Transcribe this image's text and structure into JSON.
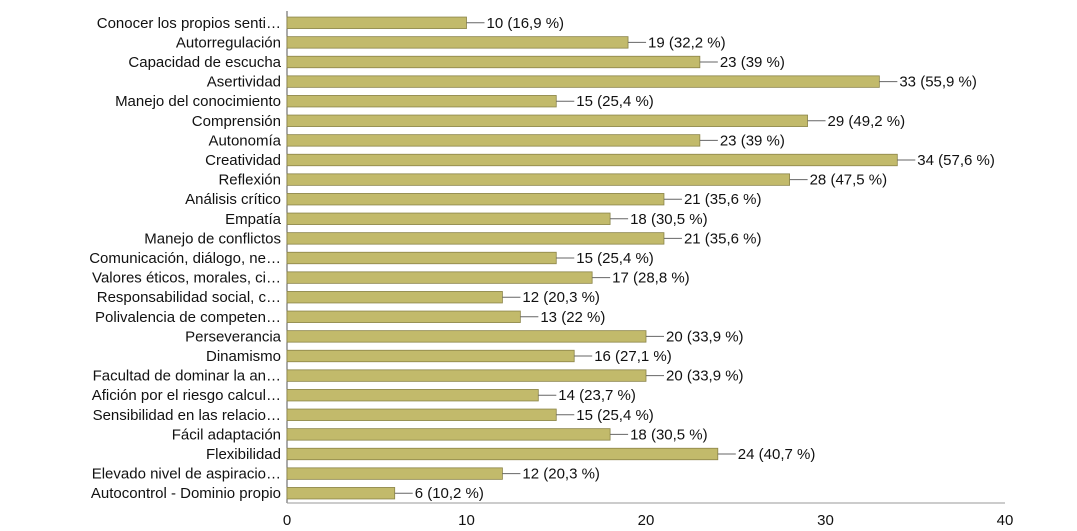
{
  "chart_data": {
    "type": "bar",
    "orientation": "horizontal",
    "categories": [
      "Conocer los propios senti…",
      "Autorregulación",
      "Capacidad de escucha",
      "Asertividad",
      "Manejo del conocimiento",
      "Comprensión",
      "Autonomía",
      "Creatividad",
      "Reflexión",
      "Análisis crítico",
      "Empatía",
      "Manejo de conflictos",
      "Comunicación, diálogo, ne…",
      "Valores éticos, morales, ci…",
      "Responsabilidad social, c…",
      "Polivalencia de competen…",
      "Perseverancia",
      "Dinamismo",
      "Facultad de dominar la an…",
      "Afición por el riesgo calcul…",
      "Sensibilidad en las relacio…",
      "Fácil adaptación",
      "Flexibilidad",
      "Elevado nivel de aspiracio…",
      "Autocontrol - Dominio propio"
    ],
    "values": [
      10,
      19,
      23,
      33,
      15,
      29,
      23,
      34,
      28,
      21,
      18,
      21,
      15,
      17,
      12,
      13,
      20,
      16,
      20,
      14,
      15,
      18,
      24,
      12,
      6
    ],
    "data_labels": [
      "10 (16,9 %)",
      "19 (32,2 %)",
      "23 (39 %)",
      "33 (55,9 %)",
      "15 (25,4 %)",
      "29 (49,2 %)",
      "23 (39 %)",
      "34 (57,6 %)",
      "28 (47,5 %)",
      "21 (35,6 %)",
      "18 (30,5 %)",
      "21 (35,6 %)",
      "15 (25,4 %)",
      "17 (28,8 %)",
      "12 (20,3 %)",
      "13 (22 %)",
      "20 (33,9 %)",
      "16 (27,1 %)",
      "20 (33,9 %)",
      "14 (23,7 %)",
      "15 (25,4 %)",
      "18 (30,5 %)",
      "24 (40,7 %)",
      "12 (20,3 %)",
      "6 (10,2 %)"
    ],
    "xlim": [
      0,
      40
    ],
    "x_ticks": [
      "0",
      "10",
      "20",
      "30",
      "40"
    ],
    "grid": false,
    "bar_color": "#C2BA6B",
    "bar_border_color": "#8A8448"
  }
}
